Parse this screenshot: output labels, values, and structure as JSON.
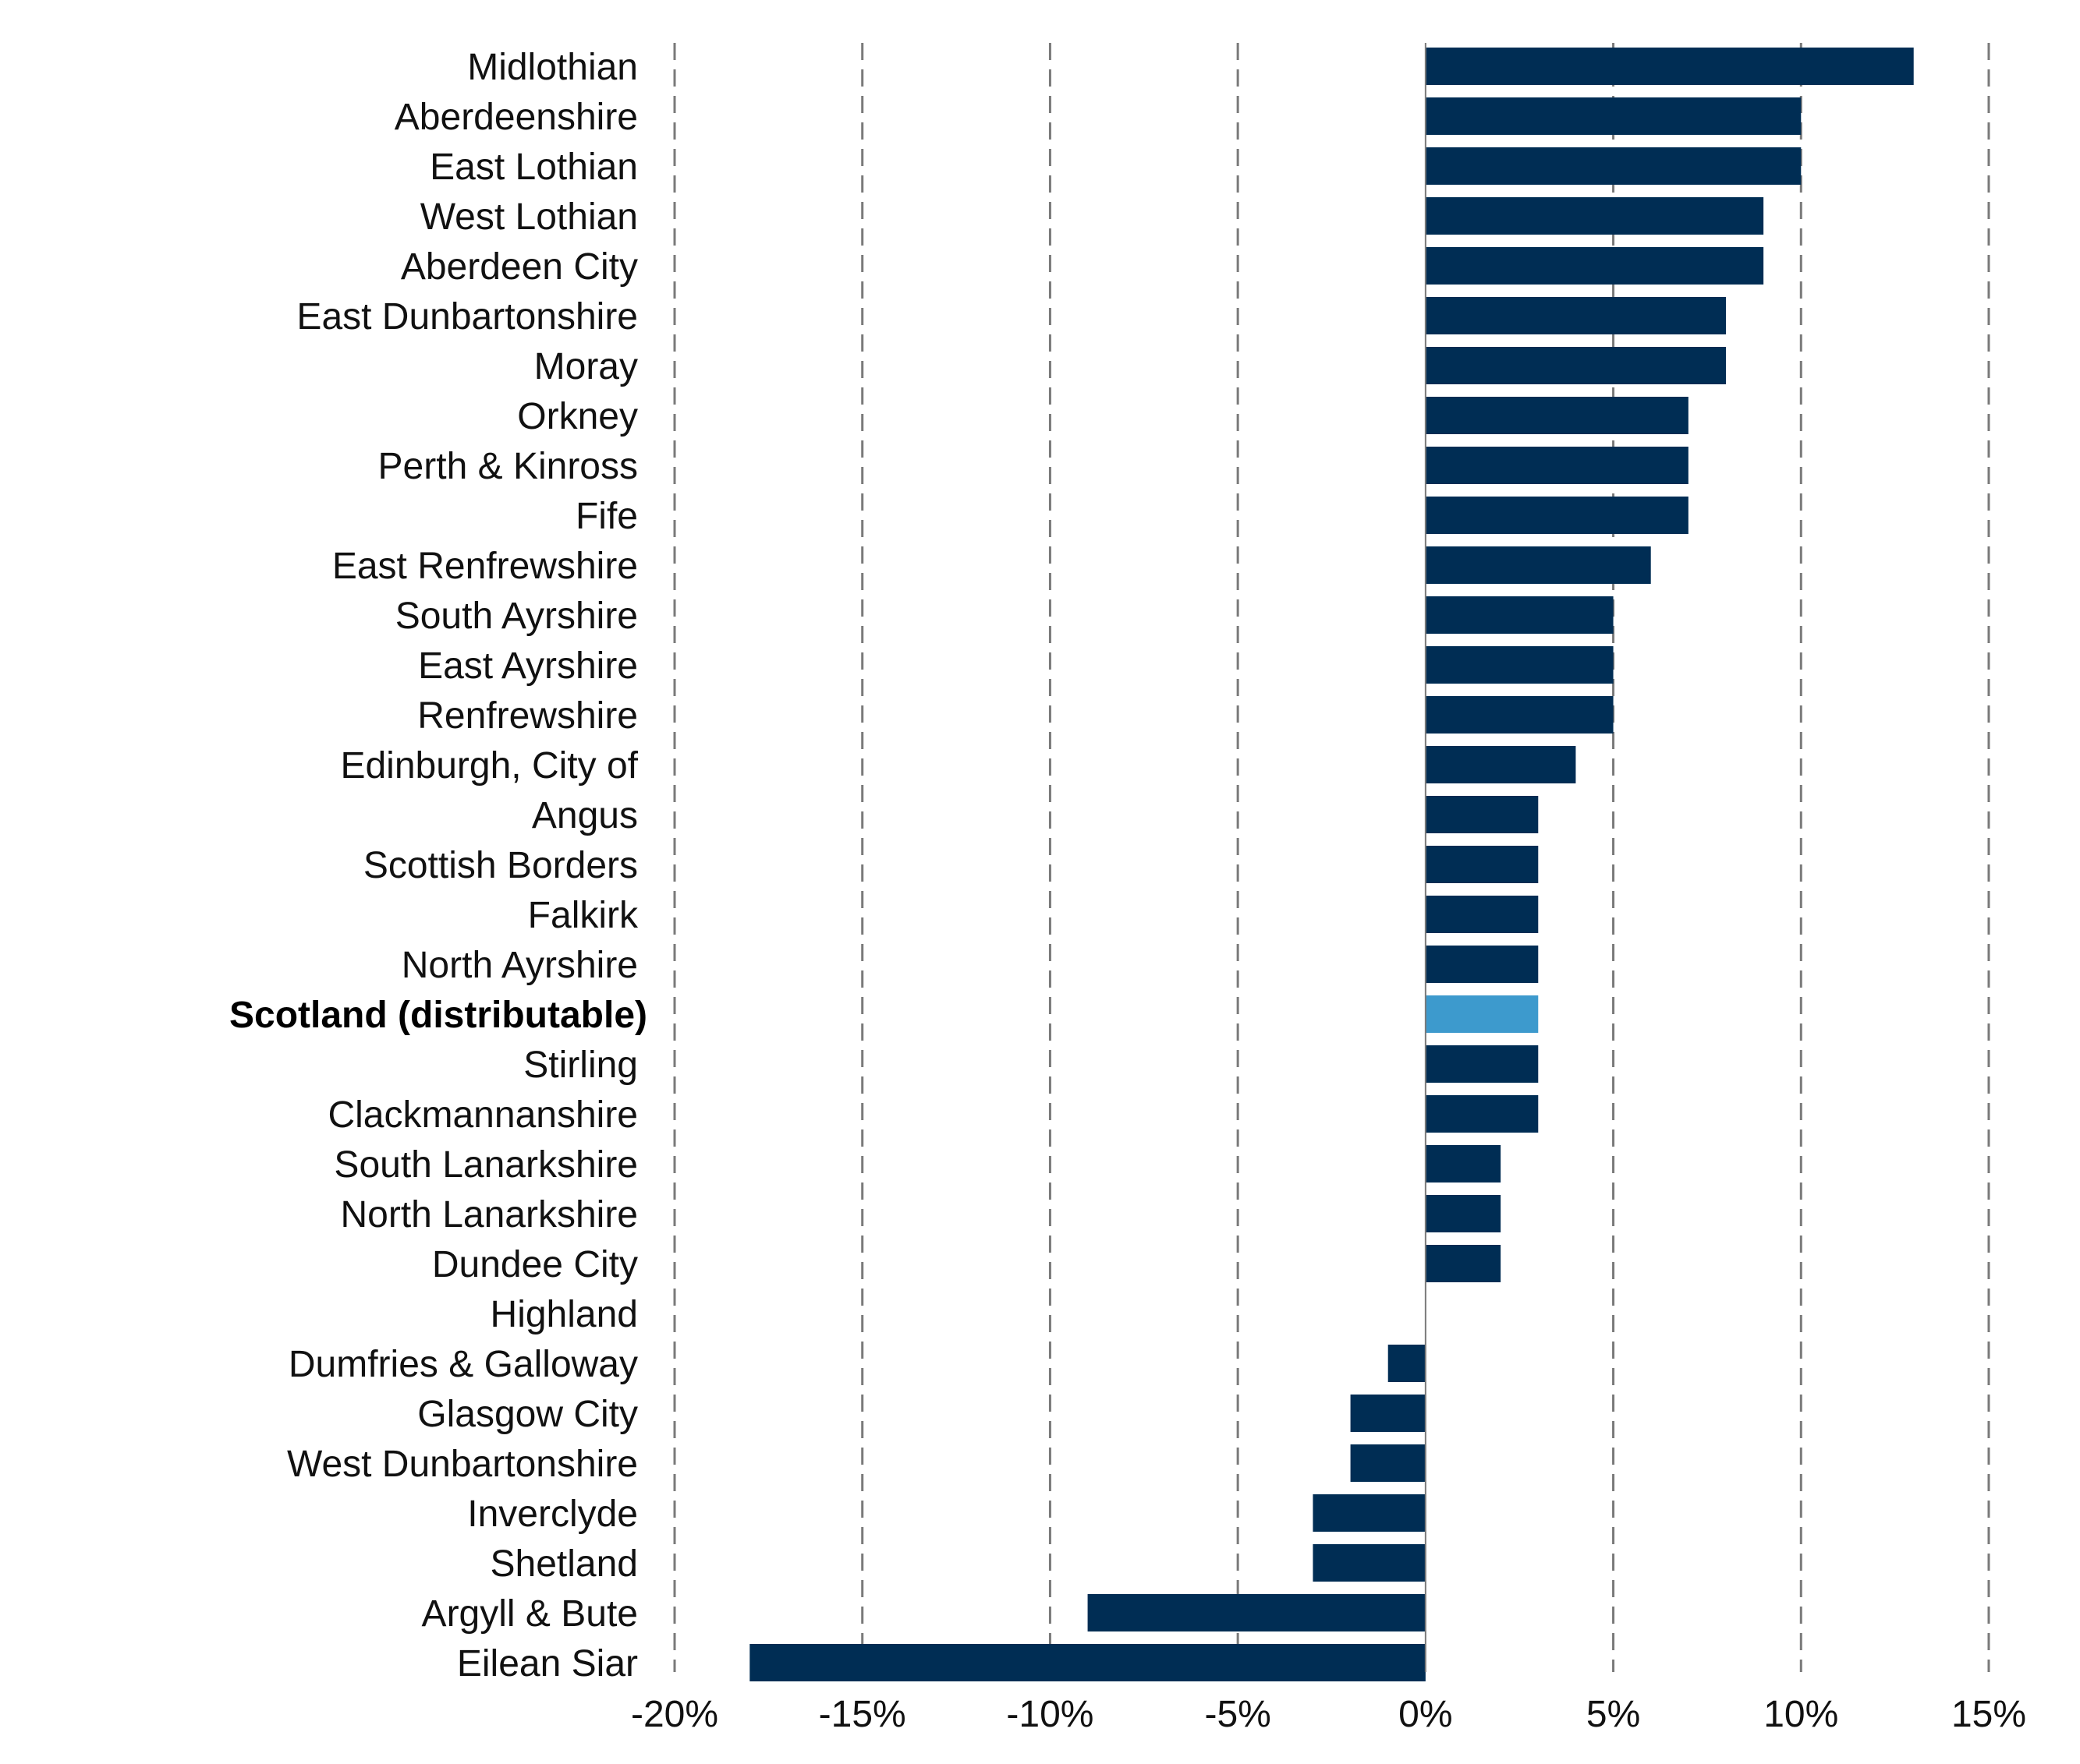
{
  "chart_data": {
    "type": "bar",
    "orientation": "horizontal",
    "categories": [
      "Midlothian",
      "Aberdeenshire",
      "East Lothian",
      "West Lothian",
      "Aberdeen City",
      "East Dunbartonshire",
      "Moray",
      "Orkney",
      "Perth & Kinross",
      "Fife",
      "East Renfrewshire",
      "South Ayrshire",
      "East Ayrshire",
      "Renfrewshire",
      "Edinburgh, City of",
      "Angus",
      "Scottish Borders",
      "Falkirk",
      "North Ayrshire",
      "Scotland (distributable)",
      "Stirling",
      "Clackmannanshire",
      "South Lanarkshire",
      "North Lanarkshire",
      "Dundee City",
      "Highland",
      "Dumfries & Galloway",
      "Glasgow City",
      "West Dunbartonshire",
      "Inverclyde",
      "Shetland",
      "Argyll & Bute",
      "Eilean Siar"
    ],
    "values": [
      13,
      10,
      10,
      9,
      9,
      8,
      8,
      7,
      7,
      7,
      6,
      5,
      5,
      5,
      4,
      3,
      3,
      3,
      3,
      3,
      3,
      3,
      2,
      2,
      2,
      0,
      -1,
      -2,
      -2,
      -3,
      -3,
      -9,
      -18
    ],
    "highlight_category": "Scotland (distributable)",
    "xlim": [
      -20,
      15
    ],
    "xticks": [
      -20,
      -15,
      -10,
      -5,
      0,
      5,
      10,
      15
    ],
    "xtick_labels": [
      "-20%",
      "-15%",
      "-10%",
      "-5%",
      "0%",
      "5%",
      "10%",
      "15%"
    ],
    "grid": true,
    "title": "",
    "xlabel": "",
    "ylabel": "",
    "colors": {
      "bar": "#002d54",
      "highlight": "#3d9acd",
      "grid": "#7a7a7a"
    }
  }
}
